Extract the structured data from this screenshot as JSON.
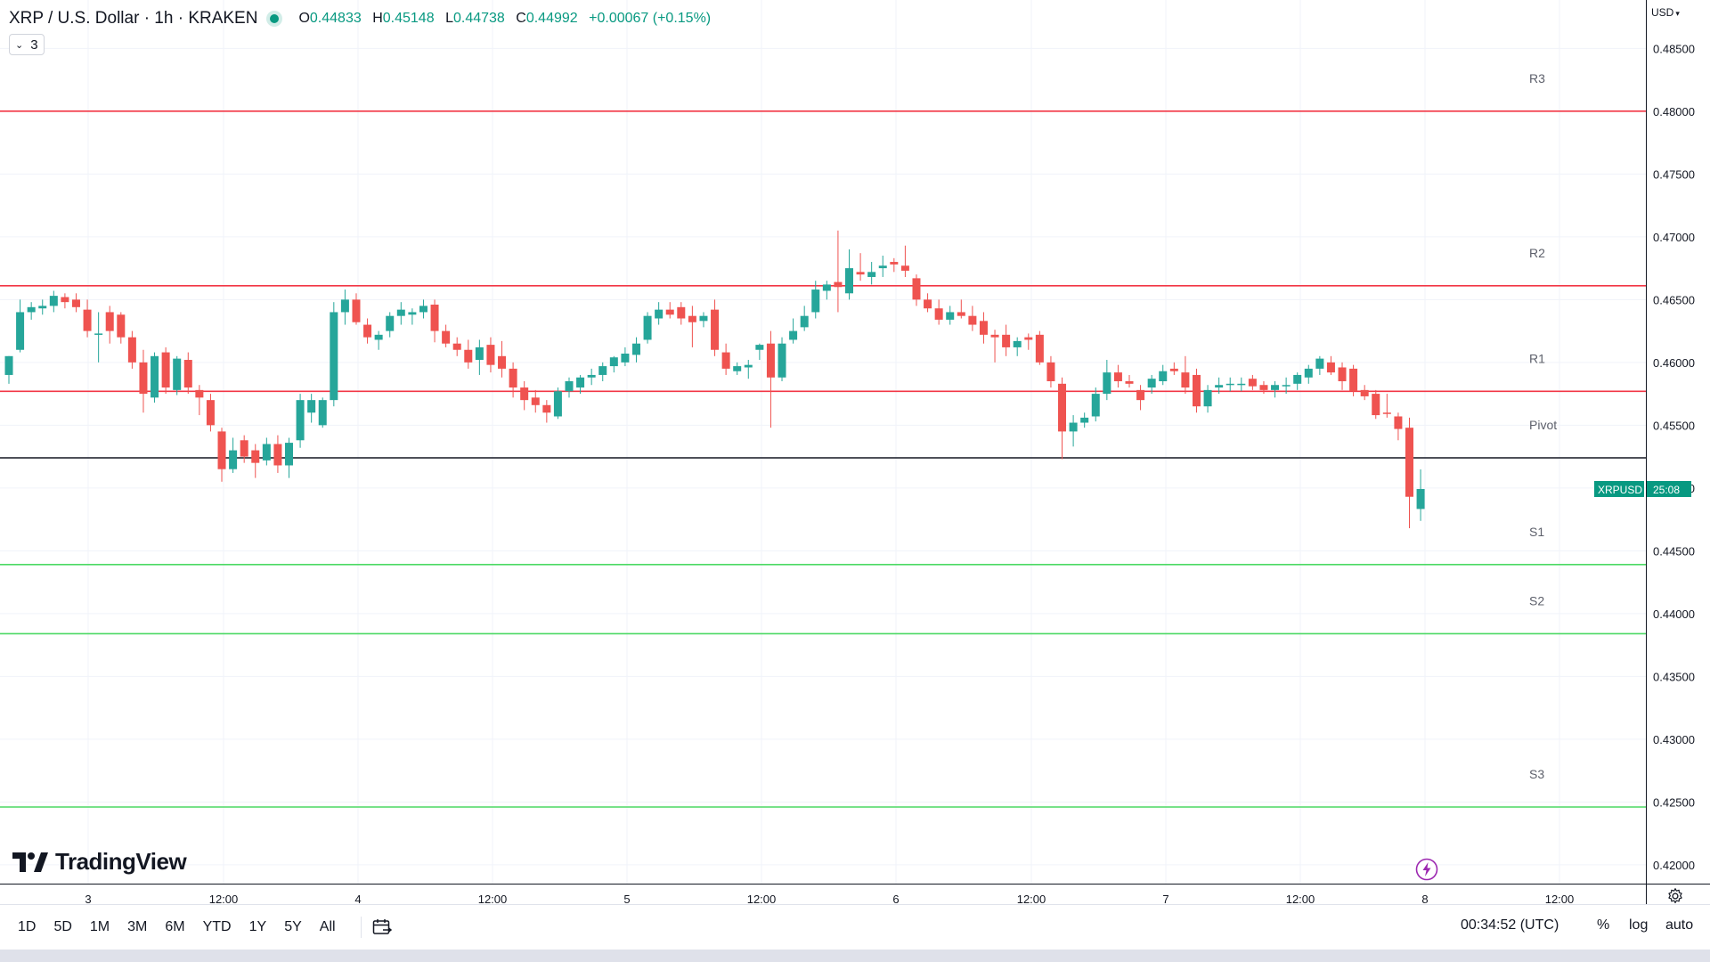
{
  "header": {
    "symbol_title": "XRP / U.S. Dollar · 1h · KRAKEN",
    "ohlc": {
      "o_label": "O",
      "o_value": "0.44833",
      "h_label": "H",
      "h_value": "0.45148",
      "l_label": "L",
      "l_value": "0.44738",
      "c_label": "C",
      "c_value": "0.44992",
      "change": "+0.00067 (+0.15%)"
    },
    "indicator_count": "3",
    "currency": "USD"
  },
  "logo_text": "TradingView",
  "price_tag": {
    "symbol": "XRPUSD",
    "countdown": "25:08"
  },
  "bottom_bar": {
    "timeframes": [
      "1D",
      "5D",
      "1M",
      "3M",
      "6M",
      "YTD",
      "1Y",
      "5Y",
      "All"
    ],
    "clock": "00:34:52 (UTC)",
    "percent_label": "%",
    "log_label": "log",
    "auto_label": "auto"
  },
  "icons": [
    "calendar-range-icon",
    "gear-icon",
    "lightning-icon",
    "chevron-down-icon"
  ],
  "colors": {
    "up": "#26a69a",
    "down": "#ef5350",
    "resistance": "#f23645",
    "support": "#4cd964",
    "pivot": "#131722",
    "accent": "#089981"
  },
  "chart_data": {
    "type": "candlestick",
    "ylim": [
      0.4185,
      0.4885
    ],
    "y_ticks": [
      0.42,
      0.425,
      0.43,
      0.435,
      0.44,
      0.445,
      0.45,
      0.455,
      0.46,
      0.465,
      0.47,
      0.475,
      0.48,
      0.485
    ],
    "y_tick_labels": [
      "0.42000",
      "0.42500",
      "0.43000",
      "0.43500",
      "0.44000",
      "0.44500",
      "0.45000",
      "0.45500",
      "0.46000",
      "0.46500",
      "0.47000",
      "0.47500",
      "0.48000",
      "0.48500"
    ],
    "x_labels": [
      "3",
      "12:00",
      "4",
      "12:00",
      "5",
      "12:00",
      "6",
      "12:00",
      "7",
      "12:00",
      "8",
      "12:00"
    ],
    "levels": [
      {
        "name": "R3",
        "value": 0.48,
        "kind": "resistance"
      },
      {
        "name": "R2",
        "value": 0.4661,
        "kind": "resistance"
      },
      {
        "name": "R1",
        "value": 0.4577,
        "kind": "resistance"
      },
      {
        "name": "Pivot",
        "value": 0.4524,
        "kind": "pivot"
      },
      {
        "name": "S1",
        "value": 0.4439,
        "kind": "support"
      },
      {
        "name": "S2",
        "value": 0.4384,
        "kind": "support"
      },
      {
        "name": "S3",
        "value": 0.4246,
        "kind": "support"
      }
    ],
    "last_price": 0.44992,
    "candles": [
      {
        "o": 0.459,
        "h": 0.4605,
        "l": 0.4583,
        "c": 0.4605
      },
      {
        "o": 0.461,
        "h": 0.465,
        "l": 0.4608,
        "c": 0.464
      },
      {
        "o": 0.464,
        "h": 0.4648,
        "l": 0.4634,
        "c": 0.4644
      },
      {
        "o": 0.4643,
        "h": 0.465,
        "l": 0.4638,
        "c": 0.4645
      },
      {
        "o": 0.4645,
        "h": 0.4657,
        "l": 0.464,
        "c": 0.4653
      },
      {
        "o": 0.4652,
        "h": 0.4655,
        "l": 0.4643,
        "c": 0.4648
      },
      {
        "o": 0.465,
        "h": 0.4655,
        "l": 0.464,
        "c": 0.4644
      },
      {
        "o": 0.4642,
        "h": 0.465,
        "l": 0.462,
        "c": 0.4625
      },
      {
        "o": 0.4623,
        "h": 0.464,
        "l": 0.46,
        "c": 0.4623
      },
      {
        "o": 0.464,
        "h": 0.4645,
        "l": 0.4615,
        "c": 0.4625
      },
      {
        "o": 0.4638,
        "h": 0.464,
        "l": 0.4615,
        "c": 0.462
      },
      {
        "o": 0.462,
        "h": 0.4625,
        "l": 0.4595,
        "c": 0.46
      },
      {
        "o": 0.46,
        "h": 0.461,
        "l": 0.456,
        "c": 0.4575
      },
      {
        "o": 0.4572,
        "h": 0.4608,
        "l": 0.4568,
        "c": 0.4605
      },
      {
        "o": 0.4608,
        "h": 0.4612,
        "l": 0.4575,
        "c": 0.458
      },
      {
        "o": 0.4578,
        "h": 0.4605,
        "l": 0.4574,
        "c": 0.4603
      },
      {
        "o": 0.4602,
        "h": 0.4608,
        "l": 0.4575,
        "c": 0.458
      },
      {
        "o": 0.4578,
        "h": 0.4582,
        "l": 0.4558,
        "c": 0.4572
      },
      {
        "o": 0.457,
        "h": 0.4575,
        "l": 0.4545,
        "c": 0.455
      },
      {
        "o": 0.4545,
        "h": 0.4548,
        "l": 0.4505,
        "c": 0.4515
      },
      {
        "o": 0.4515,
        "h": 0.454,
        "l": 0.4512,
        "c": 0.453
      },
      {
        "o": 0.4538,
        "h": 0.4542,
        "l": 0.452,
        "c": 0.4525
      },
      {
        "o": 0.453,
        "h": 0.4535,
        "l": 0.4508,
        "c": 0.452
      },
      {
        "o": 0.4522,
        "h": 0.454,
        "l": 0.4518,
        "c": 0.4535
      },
      {
        "o": 0.4535,
        "h": 0.4542,
        "l": 0.4512,
        "c": 0.4518
      },
      {
        "o": 0.4518,
        "h": 0.454,
        "l": 0.4508,
        "c": 0.4536
      },
      {
        "o": 0.4538,
        "h": 0.4575,
        "l": 0.4532,
        "c": 0.457
      },
      {
        "o": 0.456,
        "h": 0.4575,
        "l": 0.4552,
        "c": 0.457
      },
      {
        "o": 0.455,
        "h": 0.4572,
        "l": 0.4548,
        "c": 0.457
      },
      {
        "o": 0.457,
        "h": 0.4648,
        "l": 0.4565,
        "c": 0.464
      },
      {
        "o": 0.464,
        "h": 0.4658,
        "l": 0.463,
        "c": 0.465
      },
      {
        "o": 0.465,
        "h": 0.4655,
        "l": 0.463,
        "c": 0.4632
      },
      {
        "o": 0.463,
        "h": 0.4635,
        "l": 0.4615,
        "c": 0.462
      },
      {
        "o": 0.4618,
        "h": 0.4625,
        "l": 0.461,
        "c": 0.4622
      },
      {
        "o": 0.4625,
        "h": 0.464,
        "l": 0.462,
        "c": 0.4637
      },
      {
        "o": 0.4637,
        "h": 0.4648,
        "l": 0.463,
        "c": 0.4642
      },
      {
        "o": 0.4638,
        "h": 0.4643,
        "l": 0.463,
        "c": 0.464
      },
      {
        "o": 0.464,
        "h": 0.465,
        "l": 0.4635,
        "c": 0.4645
      },
      {
        "o": 0.4646,
        "h": 0.465,
        "l": 0.4616,
        "c": 0.4625
      },
      {
        "o": 0.4625,
        "h": 0.463,
        "l": 0.4612,
        "c": 0.4615
      },
      {
        "o": 0.4615,
        "h": 0.462,
        "l": 0.4605,
        "c": 0.461
      },
      {
        "o": 0.461,
        "h": 0.4618,
        "l": 0.4595,
        "c": 0.46
      },
      {
        "o": 0.4602,
        "h": 0.4618,
        "l": 0.459,
        "c": 0.4612
      },
      {
        "o": 0.4614,
        "h": 0.462,
        "l": 0.4592,
        "c": 0.4598
      },
      {
        "o": 0.4605,
        "h": 0.4617,
        "l": 0.4588,
        "c": 0.4595
      },
      {
        "o": 0.4595,
        "h": 0.46,
        "l": 0.4572,
        "c": 0.458
      },
      {
        "o": 0.458,
        "h": 0.4585,
        "l": 0.4562,
        "c": 0.457
      },
      {
        "o": 0.4572,
        "h": 0.4578,
        "l": 0.456,
        "c": 0.4566
      },
      {
        "o": 0.4566,
        "h": 0.457,
        "l": 0.4552,
        "c": 0.456
      },
      {
        "o": 0.4557,
        "h": 0.458,
        "l": 0.4555,
        "c": 0.4577
      },
      {
        "o": 0.4577,
        "h": 0.4588,
        "l": 0.4572,
        "c": 0.4585
      },
      {
        "o": 0.458,
        "h": 0.459,
        "l": 0.4575,
        "c": 0.4588
      },
      {
        "o": 0.4588,
        "h": 0.4595,
        "l": 0.4582,
        "c": 0.459
      },
      {
        "o": 0.459,
        "h": 0.46,
        "l": 0.4585,
        "c": 0.4597
      },
      {
        "o": 0.4597,
        "h": 0.4605,
        "l": 0.4592,
        "c": 0.4604
      },
      {
        "o": 0.46,
        "h": 0.4612,
        "l": 0.4597,
        "c": 0.4607
      },
      {
        "o": 0.4606,
        "h": 0.462,
        "l": 0.46,
        "c": 0.4615
      },
      {
        "o": 0.4618,
        "h": 0.464,
        "l": 0.4615,
        "c": 0.4637
      },
      {
        "o": 0.4635,
        "h": 0.4648,
        "l": 0.463,
        "c": 0.4642
      },
      {
        "o": 0.4642,
        "h": 0.4648,
        "l": 0.4635,
        "c": 0.4638
      },
      {
        "o": 0.4644,
        "h": 0.4648,
        "l": 0.463,
        "c": 0.4635
      },
      {
        "o": 0.4637,
        "h": 0.4645,
        "l": 0.4612,
        "c": 0.4632
      },
      {
        "o": 0.4633,
        "h": 0.464,
        "l": 0.4628,
        "c": 0.4637
      },
      {
        "o": 0.4642,
        "h": 0.465,
        "l": 0.4605,
        "c": 0.461
      },
      {
        "o": 0.4608,
        "h": 0.4615,
        "l": 0.459,
        "c": 0.4595
      },
      {
        "o": 0.4593,
        "h": 0.46,
        "l": 0.459,
        "c": 0.4597
      },
      {
        "o": 0.4596,
        "h": 0.4602,
        "l": 0.4587,
        "c": 0.4598
      },
      {
        "o": 0.461,
        "h": 0.4615,
        "l": 0.4602,
        "c": 0.4614
      },
      {
        "o": 0.4615,
        "h": 0.4625,
        "l": 0.4548,
        "c": 0.4588
      },
      {
        "o": 0.4588,
        "h": 0.462,
        "l": 0.4585,
        "c": 0.4615
      },
      {
        "o": 0.4618,
        "h": 0.4635,
        "l": 0.4615,
        "c": 0.4625
      },
      {
        "o": 0.4628,
        "h": 0.4645,
        "l": 0.4625,
        "c": 0.4637
      },
      {
        "o": 0.464,
        "h": 0.4665,
        "l": 0.4635,
        "c": 0.4658
      },
      {
        "o": 0.4657,
        "h": 0.4665,
        "l": 0.465,
        "c": 0.4662
      },
      {
        "o": 0.4664,
        "h": 0.4705,
        "l": 0.464,
        "c": 0.466
      },
      {
        "o": 0.4655,
        "h": 0.469,
        "l": 0.465,
        "c": 0.4675
      },
      {
        "o": 0.4672,
        "h": 0.4687,
        "l": 0.4665,
        "c": 0.467
      },
      {
        "o": 0.4668,
        "h": 0.468,
        "l": 0.4662,
        "c": 0.4672
      },
      {
        "o": 0.4675,
        "h": 0.4685,
        "l": 0.4668,
        "c": 0.4677
      },
      {
        "o": 0.468,
        "h": 0.4683,
        "l": 0.4672,
        "c": 0.4678
      },
      {
        "o": 0.4677,
        "h": 0.4693,
        "l": 0.4668,
        "c": 0.4673
      },
      {
        "o": 0.4667,
        "h": 0.467,
        "l": 0.4645,
        "c": 0.465
      },
      {
        "o": 0.465,
        "h": 0.4655,
        "l": 0.464,
        "c": 0.4643
      },
      {
        "o": 0.4643,
        "h": 0.465,
        "l": 0.463,
        "c": 0.4634
      },
      {
        "o": 0.4634,
        "h": 0.4645,
        "l": 0.463,
        "c": 0.464
      },
      {
        "o": 0.464,
        "h": 0.465,
        "l": 0.4635,
        "c": 0.4637
      },
      {
        "o": 0.4637,
        "h": 0.4645,
        "l": 0.4625,
        "c": 0.463
      },
      {
        "o": 0.4633,
        "h": 0.464,
        "l": 0.4615,
        "c": 0.4622
      },
      {
        "o": 0.4622,
        "h": 0.4626,
        "l": 0.46,
        "c": 0.462
      },
      {
        "o": 0.4622,
        "h": 0.463,
        "l": 0.4605,
        "c": 0.4612
      },
      {
        "o": 0.4612,
        "h": 0.462,
        "l": 0.4605,
        "c": 0.4617
      },
      {
        "o": 0.462,
        "h": 0.4623,
        "l": 0.461,
        "c": 0.4618
      },
      {
        "o": 0.4622,
        "h": 0.4625,
        "l": 0.4598,
        "c": 0.46
      },
      {
        "o": 0.46,
        "h": 0.4605,
        "l": 0.458,
        "c": 0.4585
      },
      {
        "o": 0.4583,
        "h": 0.4588,
        "l": 0.4523,
        "c": 0.4545
      },
      {
        "o": 0.4545,
        "h": 0.4558,
        "l": 0.4533,
        "c": 0.4552
      },
      {
        "o": 0.4552,
        "h": 0.456,
        "l": 0.4548,
        "c": 0.4556
      },
      {
        "o": 0.4557,
        "h": 0.458,
        "l": 0.4553,
        "c": 0.4575
      },
      {
        "o": 0.4575,
        "h": 0.4602,
        "l": 0.457,
        "c": 0.4592
      },
      {
        "o": 0.4592,
        "h": 0.4598,
        "l": 0.458,
        "c": 0.4585
      },
      {
        "o": 0.4585,
        "h": 0.459,
        "l": 0.458,
        "c": 0.4583
      },
      {
        "o": 0.4578,
        "h": 0.4582,
        "l": 0.4562,
        "c": 0.457
      },
      {
        "o": 0.458,
        "h": 0.459,
        "l": 0.4575,
        "c": 0.4587
      },
      {
        "o": 0.4585,
        "h": 0.4598,
        "l": 0.4582,
        "c": 0.4593
      },
      {
        "o": 0.4595,
        "h": 0.46,
        "l": 0.459,
        "c": 0.4593
      },
      {
        "o": 0.4592,
        "h": 0.4605,
        "l": 0.4575,
        "c": 0.458
      },
      {
        "o": 0.459,
        "h": 0.4595,
        "l": 0.456,
        "c": 0.4565
      },
      {
        "o": 0.4565,
        "h": 0.4582,
        "l": 0.456,
        "c": 0.4578
      },
      {
        "o": 0.458,
        "h": 0.4588,
        "l": 0.4575,
        "c": 0.4582
      },
      {
        "o": 0.4582,
        "h": 0.4588,
        "l": 0.4577,
        "c": 0.4583
      },
      {
        "o": 0.4582,
        "h": 0.4588,
        "l": 0.4577,
        "c": 0.4583
      },
      {
        "o": 0.4587,
        "h": 0.459,
        "l": 0.4578,
        "c": 0.4581
      },
      {
        "o": 0.4582,
        "h": 0.4585,
        "l": 0.4575,
        "c": 0.4578
      },
      {
        "o": 0.4578,
        "h": 0.4585,
        "l": 0.4572,
        "c": 0.4582
      },
      {
        "o": 0.4581,
        "h": 0.4588,
        "l": 0.4575,
        "c": 0.4582
      },
      {
        "o": 0.4583,
        "h": 0.4592,
        "l": 0.4578,
        "c": 0.459
      },
      {
        "o": 0.4588,
        "h": 0.4598,
        "l": 0.4583,
        "c": 0.4595
      },
      {
        "o": 0.4595,
        "h": 0.4605,
        "l": 0.459,
        "c": 0.4603
      },
      {
        "o": 0.46,
        "h": 0.4605,
        "l": 0.459,
        "c": 0.4592
      },
      {
        "o": 0.4596,
        "h": 0.46,
        "l": 0.4578,
        "c": 0.4585
      },
      {
        "o": 0.4595,
        "h": 0.4598,
        "l": 0.4573,
        "c": 0.4577
      },
      {
        "o": 0.4578,
        "h": 0.4582,
        "l": 0.457,
        "c": 0.4573
      },
      {
        "o": 0.4575,
        "h": 0.4578,
        "l": 0.4555,
        "c": 0.4558
      },
      {
        "o": 0.456,
        "h": 0.4575,
        "l": 0.4556,
        "c": 0.4559
      },
      {
        "o": 0.4557,
        "h": 0.456,
        "l": 0.4538,
        "c": 0.4547
      },
      {
        "o": 0.4548,
        "h": 0.4556,
        "l": 0.4468,
        "c": 0.4493
      },
      {
        "o": 0.44833,
        "h": 0.45148,
        "l": 0.44738,
        "c": 0.44992
      }
    ]
  }
}
